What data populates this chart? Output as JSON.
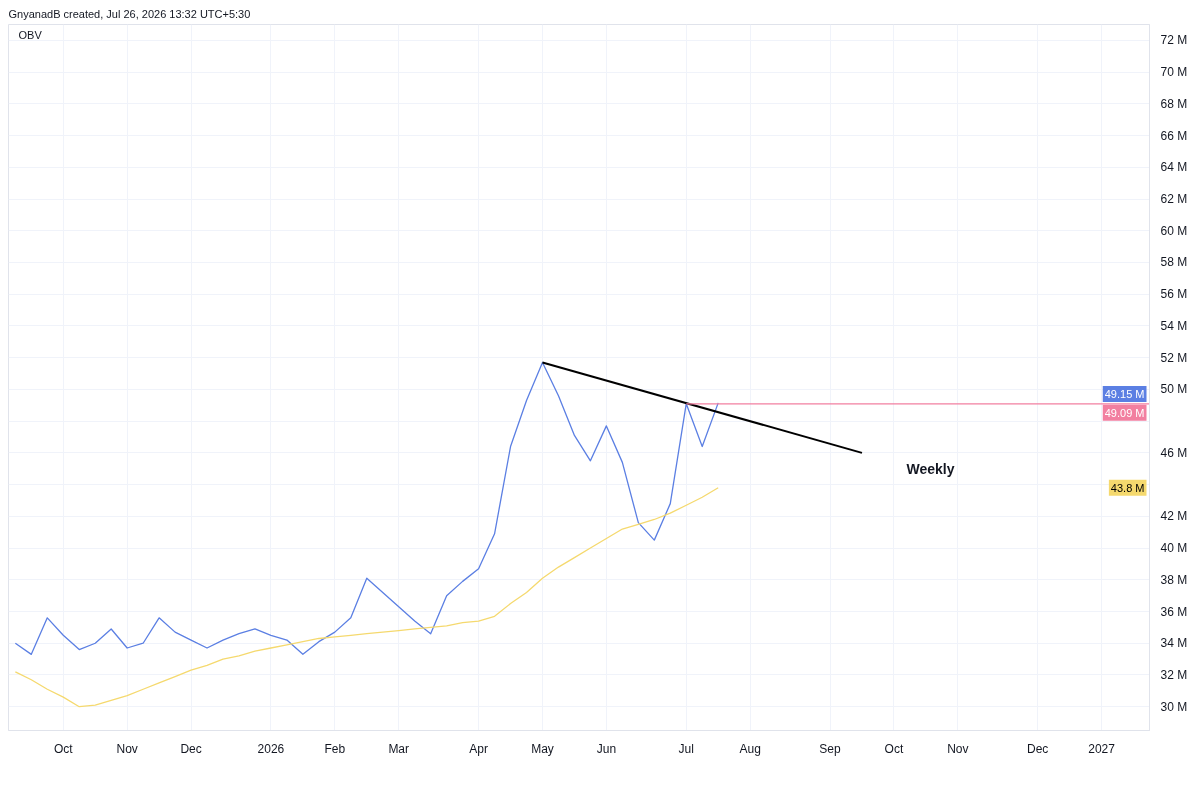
{
  "chart_data": {
    "type": "line",
    "title": "OBV",
    "annotations": [
      "GnyanadB created, Jul 26, 2026 13:32 UTC+5:30",
      "Weekly",
      {
        "text": "49.15 M",
        "y": 49.15
      },
      {
        "text": "49.09 M",
        "y": 49.09
      },
      {
        "text": "43.8 M",
        "y": 43.8
      }
    ],
    "x": [
      "2025-09-15",
      "2025-09-22",
      "2025-09-29",
      "2025-10-06",
      "2025-10-13",
      "2025-10-20",
      "2025-10-27",
      "2025-11-03",
      "2025-11-10",
      "2025-11-17",
      "2025-11-24",
      "2025-12-01",
      "2025-12-08",
      "2025-12-15",
      "2025-12-22",
      "2025-12-29",
      "2026-01-05",
      "2026-01-12",
      "2026-01-19",
      "2026-01-26",
      "2026-02-02",
      "2026-02-09",
      "2026-02-16",
      "2026-02-23",
      "2026-03-02",
      "2026-03-09",
      "2026-03-16",
      "2026-03-23",
      "2026-03-30",
      "2026-04-06",
      "2026-04-13",
      "2026-04-20",
      "2026-04-27",
      "2026-05-04",
      "2026-05-11",
      "2026-05-18",
      "2026-05-25",
      "2026-06-01",
      "2026-06-08",
      "2026-06-15",
      "2026-06-22",
      "2026-06-29",
      "2026-07-06",
      "2026-07-13",
      "2026-07-20"
    ],
    "series": [
      {
        "color": "#5b7fe3",
        "values": [
          34.0,
          33.3,
          35.6,
          34.5,
          33.6,
          34.0,
          34.9,
          33.7,
          34.0,
          35.6,
          34.7,
          34.2,
          33.7,
          34.2,
          34.6,
          34.9,
          34.5,
          34.2,
          33.3,
          34.1,
          34.7,
          35.6,
          38.1,
          37.2,
          36.3,
          35.4,
          34.6,
          37.0,
          37.9,
          38.7,
          40.9,
          46.4,
          49.3,
          51.7,
          49.6,
          47.1,
          45.5,
          47.7,
          45.4,
          41.6,
          40.5,
          42.8,
          49.1,
          46.4,
          49.15
        ]
      },
      {
        "color": "#f5d96e",
        "values": [
          32.2,
          31.7,
          31.1,
          30.6,
          30.0,
          30.1,
          30.4,
          30.7,
          31.1,
          31.5,
          31.9,
          32.3,
          32.6,
          33.0,
          33.2,
          33.5,
          33.7,
          33.9,
          34.1,
          34.3,
          34.4,
          34.5,
          34.6,
          34.7,
          34.8,
          34.9,
          35.0,
          35.1,
          35.3,
          35.4,
          35.7,
          36.5,
          37.2,
          38.1,
          38.8,
          39.4,
          40.0,
          40.6,
          41.2,
          41.5,
          41.8,
          42.2,
          42.7,
          43.2,
          43.8
        ]
      },
      {
        "color": "#000000",
        "x": [
          "2026-05-04",
          "2026-09-21"
        ],
        "values": [
          51.7,
          46.0
        ]
      },
      {
        "color": "#f27fa0",
        "x": [
          "2026-07-06",
          "2027-01-25"
        ],
        "values": [
          49.09,
          49.09
        ]
      }
    ],
    "xlim": [
      "2025-09-12",
      "2027-01-25"
    ],
    "xticks": [
      {
        "value": "2025-10-06",
        "label": "Oct"
      },
      {
        "value": "2025-11-03",
        "label": "Nov"
      },
      {
        "value": "2025-12-01",
        "label": "Dec"
      },
      {
        "value": "2026-01-05",
        "label": "2026"
      },
      {
        "value": "2026-02-02",
        "label": "Feb"
      },
      {
        "value": "2026-03-02",
        "label": "Mar"
      },
      {
        "value": "2026-04-06",
        "label": "Apr"
      },
      {
        "value": "2026-05-04",
        "label": "May"
      },
      {
        "value": "2026-06-01",
        "label": "Jun"
      },
      {
        "value": "2026-07-06",
        "label": "Jul"
      },
      {
        "value": "2026-08-03",
        "label": "Aug"
      },
      {
        "value": "2026-09-07",
        "label": "Sep"
      },
      {
        "value": "2026-10-05",
        "label": "Oct"
      },
      {
        "value": "2026-11-02",
        "label": "Nov"
      },
      {
        "value": "2026-12-07",
        "label": "Dec"
      },
      {
        "value": "2027-01-04",
        "label": "2027"
      }
    ],
    "ylim": [
      28.5,
      73
    ],
    "yticks": [
      {
        "value": 30,
        "label": "30 M"
      },
      {
        "value": 32,
        "label": "32 M"
      },
      {
        "value": 34,
        "label": "34 M"
      },
      {
        "value": 36,
        "label": "36 M"
      },
      {
        "value": 38,
        "label": "38 M"
      },
      {
        "value": 40,
        "label": "40 M"
      },
      {
        "value": 42,
        "label": "42 M"
      },
      {
        "value": 44,
        "label": null
      },
      {
        "value": 46,
        "label": "46 M"
      },
      {
        "value": 48,
        "label": null
      },
      {
        "value": 50,
        "label": "50 M"
      },
      {
        "value": 52,
        "label": "52 M"
      },
      {
        "value": 54,
        "label": "54 M"
      },
      {
        "value": 56,
        "label": "56 M"
      },
      {
        "value": 58,
        "label": "58 M"
      },
      {
        "value": 60,
        "label": "60 M"
      },
      {
        "value": 62,
        "label": "62 M"
      },
      {
        "value": 64,
        "label": "64 M"
      },
      {
        "value": 66,
        "label": "66 M"
      },
      {
        "value": 68,
        "label": "68 M"
      },
      {
        "value": 70,
        "label": "70 M"
      },
      {
        "value": 72,
        "label": "72 M"
      }
    ],
    "grid": true,
    "marker": "none",
    "line_style": "solid"
  }
}
